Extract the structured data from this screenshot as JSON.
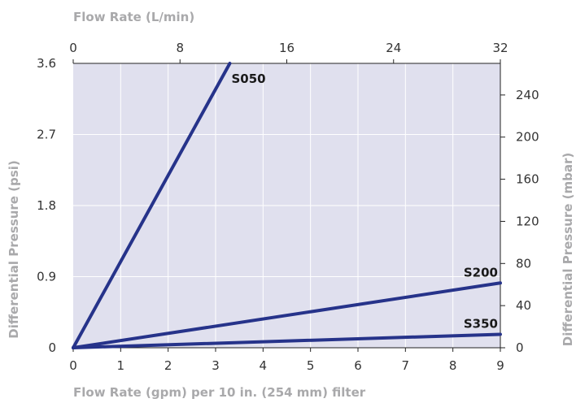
{
  "chart_data": {
    "type": "line",
    "title": "",
    "xlabel": "Flow Rate (gpm) per 10 in. (254 mm) filter",
    "ylabel": "Differential Pressure (psi)",
    "x2label": "Flow Rate (L/min)",
    "y2label": "Differential Pressure (mbar)",
    "xlim": [
      0,
      9
    ],
    "ylim": [
      0,
      3.6
    ],
    "x2lim": [
      0,
      32
    ],
    "y2lim": [
      0,
      270
    ],
    "x_ticks": [
      "0",
      "1",
      "2",
      "3",
      "4",
      "5",
      "6",
      "7",
      "8",
      "9"
    ],
    "y_ticks": [
      "0",
      "0.9",
      "1.8",
      "2.7",
      "3.6"
    ],
    "x2_ticks": [
      "0",
      "8",
      "16",
      "24",
      "32"
    ],
    "y2_ticks": [
      "0",
      "40",
      "80",
      "120",
      "160",
      "200",
      "240"
    ],
    "grid": true,
    "colors": {
      "plot_bg": "#e0e0ee",
      "line": "#26338a",
      "grid": "#ffffff",
      "axis_title": "#a9a9ab",
      "tick": "#333333"
    },
    "series": [
      {
        "name": "S050",
        "points": [
          [
            0,
            0
          ],
          [
            3.3,
            3.6
          ]
        ]
      },
      {
        "name": "S200",
        "points": [
          [
            0,
            0
          ],
          [
            9,
            0.82
          ]
        ]
      },
      {
        "name": "S350",
        "points": [
          [
            0,
            0
          ],
          [
            9,
            0.17
          ]
        ]
      }
    ]
  }
}
